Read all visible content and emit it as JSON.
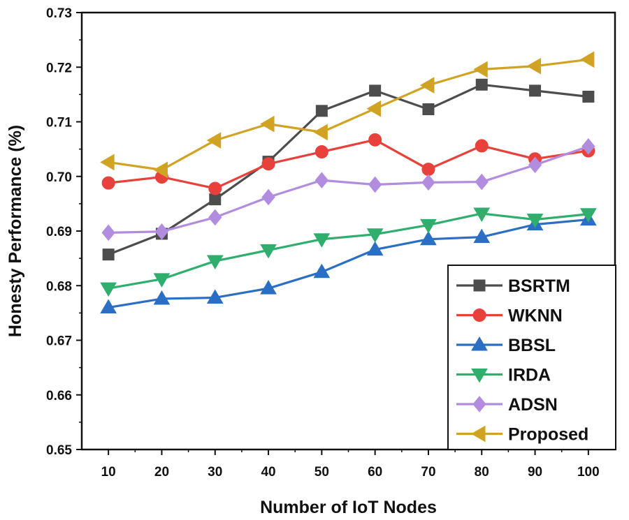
{
  "chart_data": {
    "type": "line",
    "xlabel": "Number of IoT Nodes",
    "ylabel": "Honesty Performance (%)",
    "x": [
      10,
      20,
      30,
      40,
      50,
      60,
      70,
      80,
      90,
      100
    ],
    "xlim": [
      5,
      105
    ],
    "ylim": [
      0.65,
      0.73
    ],
    "yticks": [
      "0.65",
      "0.66",
      "0.67",
      "0.68",
      "0.69",
      "0.70",
      "0.71",
      "0.72",
      "0.73"
    ],
    "legend_position": "bottom-right",
    "series": [
      {
        "name": "BSRTM",
        "marker": "square",
        "color": "#4d4d4d",
        "values": [
          0.6857,
          0.6895,
          0.6958,
          0.7027,
          0.712,
          0.7157,
          0.7123,
          0.7168,
          0.7157,
          0.7146
        ]
      },
      {
        "name": "WKNN",
        "marker": "circle",
        "color": "#e8403a",
        "values": [
          0.6988,
          0.6999,
          0.6978,
          0.7023,
          0.7045,
          0.7067,
          0.7013,
          0.7056,
          0.7032,
          0.7047
        ]
      },
      {
        "name": "BBSL",
        "marker": "triangle-up",
        "color": "#2a6fc4",
        "values": [
          0.676,
          0.6776,
          0.6778,
          0.6795,
          0.6825,
          0.6866,
          0.6885,
          0.6889,
          0.6912,
          0.6921
        ]
      },
      {
        "name": "IRDA",
        "marker": "triangle-down",
        "color": "#2fae6e",
        "values": [
          0.6795,
          0.6812,
          0.6845,
          0.6865,
          0.6885,
          0.6894,
          0.6911,
          0.6932,
          0.6921,
          0.6931
        ]
      },
      {
        "name": "ADSN",
        "marker": "diamond",
        "color": "#b28cdf",
        "values": [
          0.6897,
          0.6899,
          0.6925,
          0.6962,
          0.6993,
          0.6985,
          0.6989,
          0.699,
          0.7021,
          0.7055
        ]
      },
      {
        "name": "Proposed",
        "marker": "triangle-left",
        "color": "#d1a324",
        "values": [
          0.7026,
          0.7012,
          0.7066,
          0.7096,
          0.7081,
          0.7124,
          0.7167,
          0.7196,
          0.7202,
          0.7214
        ]
      }
    ]
  }
}
